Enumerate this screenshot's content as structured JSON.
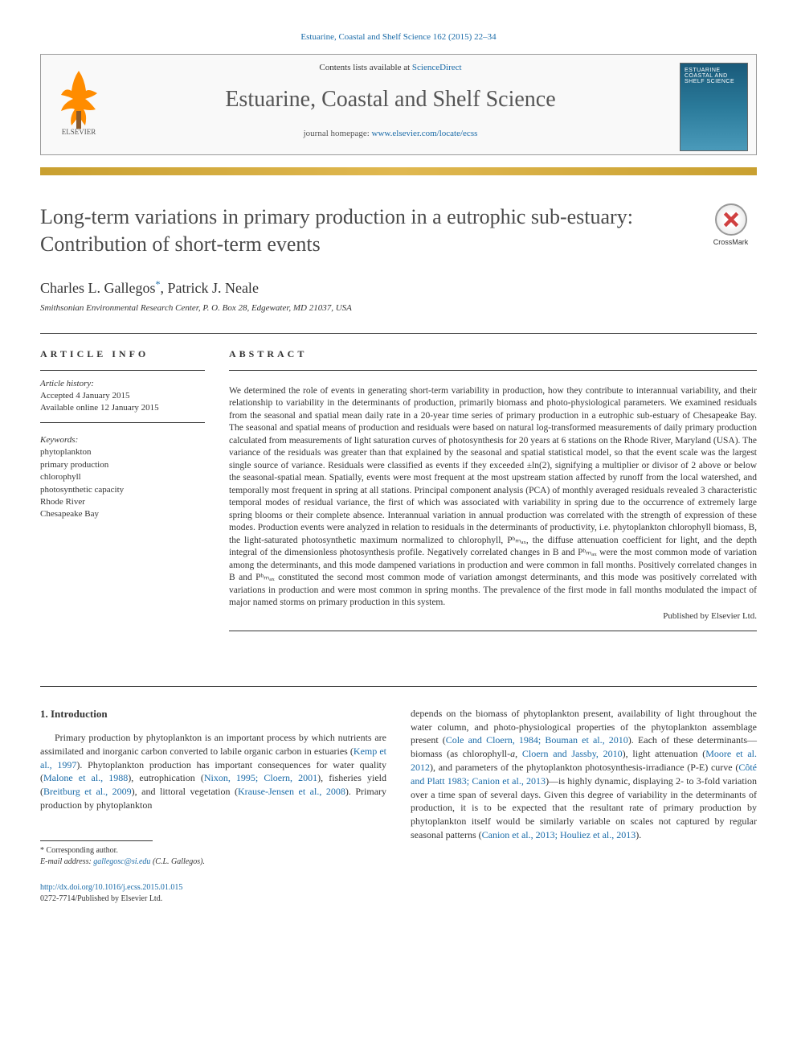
{
  "citation": "Estuarine, Coastal and Shelf Science 162 (2015) 22–34",
  "contents_prefix": "Contents lists available at ",
  "contents_link": "ScienceDirect",
  "journal_name": "Estuarine, Coastal and Shelf Science",
  "homepage_prefix": "journal homepage: ",
  "homepage_link": "www.elsevier.com/locate/ecss",
  "title": "Long-term variations in primary production in a eutrophic sub-estuary: Contribution of short-term events",
  "crossmark_label": "CrossMark",
  "authors_html": "Charles L. Gallegos<sup>*</sup>, Patrick J. Neale",
  "affiliation": "Smithsonian Environmental Research Center, P. O. Box 28, Edgewater, MD 21037, USA",
  "article_info_label": "ARTICLE INFO",
  "abstract_label": "ABSTRACT",
  "history_label": "Article history:",
  "history": {
    "accepted": "Accepted 4 January 2015",
    "online": "Available online 12 January 2015"
  },
  "keywords_label": "Keywords:",
  "keywords": [
    "phytoplankton",
    "primary production",
    "chlorophyll",
    "photosynthetic capacity",
    "Rhode River",
    "Chesapeake Bay"
  ],
  "abstract": "We determined the role of events in generating short-term variability in production, how they contribute to interannual variability, and their relationship to variability in the determinants of production, primarily biomass and photo-physiological parameters. We examined residuals from the seasonal and spatial mean daily rate in a 20-year time series of primary production in a eutrophic sub-estuary of Chesapeake Bay. The seasonal and spatial means of production and residuals were based on natural log-transformed measurements of daily primary production calculated from measurements of light saturation curves of photosynthesis for 20 years at 6 stations on the Rhode River, Maryland (USA). The variance of the residuals was greater than that explained by the seasonal and spatial statistical model, so that the event scale was the largest single source of variance. Residuals were classified as events if they exceeded ±ln(2), signifying a multiplier or divisor of 2 above or below the seasonal-spatial mean. Spatially, events were most frequent at the most upstream station affected by runoff from the local watershed, and temporally most frequent in spring at all stations. Principal component analysis (PCA) of monthly averaged residuals revealed 3 characteristic temporal modes of residual variance, the first of which was associated with variability in spring due to the occurrence of extremely large spring blooms or their complete absence. Interannual variation in annual production was correlated with the strength of expression of these modes. Production events were analyzed in relation to residuals in the determinants of productivity, i.e. phytoplankton chlorophyll biomass, B, the light-saturated photosynthetic maximum normalized to chlorophyll, Pᵇₘₐₓ, the diffuse attenuation coefficient for light, and the depth integral of the dimensionless photosynthesis profile. Negatively correlated changes in B and Pᵇₘₐₓ were the most common mode of variation among the determinants, and this mode dampened variations in production and were common in fall months. Positively correlated changes in B and Pᵇₘₐₓ constituted the second most common mode of variation amongst determinants, and this mode was positively correlated with variations in production and were most common in spring months. The prevalence of the first mode in fall months modulated the impact of major named storms on primary production in this system.",
  "publisher_line": "Published by Elsevier Ltd.",
  "intro_heading": "1. Introduction",
  "intro_col1": "Primary production by phytoplankton is an important process by which nutrients are assimilated and inorganic carbon converted to labile organic carbon in estuaries (<a>Kemp et al., 1997</a>). Phytoplankton production has important consequences for water quality (<a>Malone et al., 1988</a>), eutrophication (<a>Nixon, 1995; Cloern, 2001</a>), fisheries yield (<a>Breitburg et al., 2009</a>), and littoral vegetation (<a>Krause-Jensen et al., 2008</a>). Primary production by phytoplankton",
  "intro_col2": "depends on the biomass of phytoplankton present, availability of light throughout the water column, and photo-physiological properties of the phytoplankton assemblage present (<a>Cole and Cloern, 1984; Bouman et al., 2010</a>). Each of these determinants—biomass (as chlorophyll-<i>a</i>, <a>Cloern and Jassby, 2010</a>), light attenuation (<a>Moore et al. 2012</a>), and parameters of the phytoplankton photosynthesis-irradiance (P-E) curve (<a>Côté and Platt 1983; Canion et al., 2013</a>)—is highly dynamic, displaying 2- to 3-fold variation over a time span of several days. Given this degree of variability in the determinants of production, it is to be expected that the resultant rate of primary production by phytoplankton itself would be similarly variable on scales not captured by regular seasonal patterns (<a>Canion et al., 2013; Houliez et al., 2013</a>).",
  "corr_label": "* Corresponding author.",
  "email_label": "E-mail address: ",
  "email": "gallegosc@si.edu",
  "email_suffix": " (C.L. Gallegos).",
  "doi": "http://dx.doi.org/10.1016/j.ecss.2015.01.015",
  "issn_line": "0272-7714/Published by Elsevier Ltd.",
  "colors": {
    "link": "#1a6ba8",
    "gold": "#c9a030",
    "elsevier_orange": "#ff8c00"
  }
}
